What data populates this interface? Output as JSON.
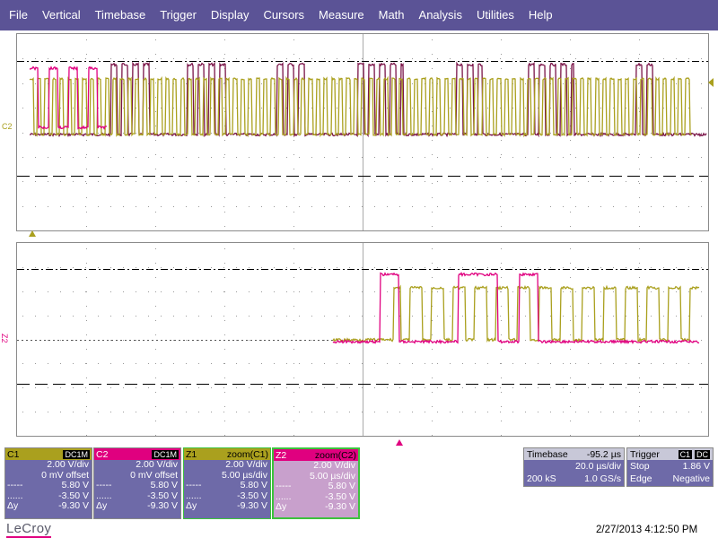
{
  "menu": [
    "File",
    "Vertical",
    "Timebase",
    "Trigger",
    "Display",
    "Cursors",
    "Measure",
    "Math",
    "Analysis",
    "Utilities",
    "Help"
  ],
  "colors": {
    "menu_bg": "#5b5396",
    "c1": "#aaa01e",
    "c2": "#e0007f",
    "c2_dark": "#7a1448",
    "panel_bg": "#6e6aa8",
    "z2_bg": "#c8a0cc"
  },
  "traces": {
    "upper_label": "C2",
    "lower_label": "Z2"
  },
  "channels": [
    {
      "name": "C1",
      "coupling": "DC1M",
      "scale": "2.00 V/div",
      "offset": "0 mV offset",
      "lvl1_label": "-----",
      "lvl1": "5.80 V",
      "lvl2_label": "......",
      "lvl2": "-3.50 V",
      "dy_label": "Δy",
      "dy": "-9.30 V"
    },
    {
      "name": "C2",
      "coupling": "DC1M",
      "scale": "2.00 V/div",
      "offset": "0 mV offset",
      "lvl1_label": "-----",
      "lvl1": "5.80 V",
      "lvl2_label": "......",
      "lvl2": "-3.50 V",
      "dy_label": "Δy",
      "dy": "-9.30 V"
    },
    {
      "name": "Z1",
      "coupling": "zoom(C1)",
      "scale": "2.00 V/div",
      "offset": "5.00 µs/div",
      "lvl1_label": "-----",
      "lvl1": "5.80 V",
      "lvl2_label": "......",
      "lvl2": "-3.50 V",
      "dy_label": "Δy",
      "dy": "-9.30 V"
    },
    {
      "name": "Z2",
      "coupling": "zoom(C2)",
      "scale": "2.00 V/div",
      "offset": "5.00 µs/div",
      "lvl1_label": "-----",
      "lvl1": "5.80 V",
      "lvl2_label": "......",
      "lvl2": "-3.50 V",
      "dy_label": "Δy",
      "dy": "-9.30 V"
    }
  ],
  "timebase": {
    "label": "Timebase",
    "delay": "-95.2 µs",
    "per_div": "20.0 µs/div",
    "samples": "200 kS",
    "rate": "1.0 GS/s"
  },
  "trigger": {
    "label": "Trigger",
    "tag": "C1",
    "coupling": "DC",
    "mode": "Stop",
    "level": "1.86 V",
    "type": "Edge",
    "slope": "Negative"
  },
  "brand": "LeCroy",
  "datetime": "2/27/2013 4:12:50 PM"
}
